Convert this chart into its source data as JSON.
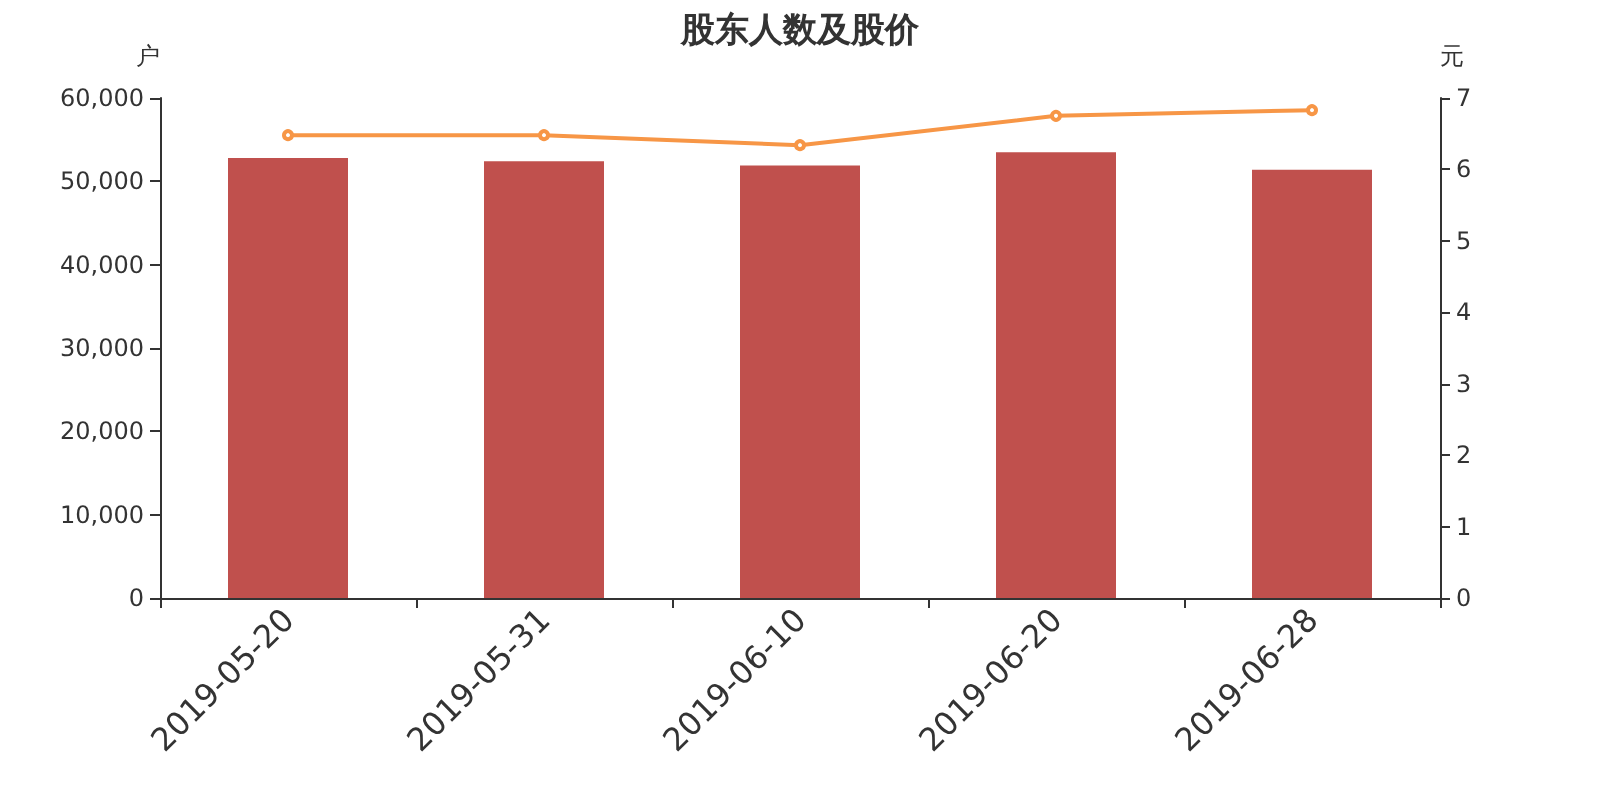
{
  "chart_data": {
    "type": "bar",
    "title": "股东人数及股价",
    "ylabel": "户",
    "y2label": "元",
    "categories": [
      "2019-05-20",
      "2019-05-31",
      "2019-06-10",
      "2019-06-20",
      "2019-06-28"
    ],
    "series": [
      {
        "color": "#c0504d",
        "values": [
          52800,
          52400,
          51900,
          53500,
          51400
        ]
      },
      {
        "type": "line",
        "axis": "y2",
        "color": "#f79646",
        "marker": "circle",
        "values": [
          6.48,
          6.48,
          6.34,
          6.75,
          6.83
        ]
      }
    ],
    "ylim": [
      0,
      60000
    ],
    "yticks": [
      0,
      {
        "value": 10000,
        "label": "10,000"
      },
      {
        "value": 20000,
        "label": "20,000"
      },
      {
        "value": 30000,
        "label": "30,000"
      },
      {
        "value": 40000,
        "label": "40,000"
      },
      {
        "value": 50000,
        "label": "50,000"
      },
      {
        "value": 60000,
        "label": "60,000"
      }
    ],
    "y2lim": [
      0,
      7
    ],
    "y2ticks": [
      0,
      1,
      2,
      3,
      4,
      5,
      6,
      7
    ],
    "grid": false
  }
}
